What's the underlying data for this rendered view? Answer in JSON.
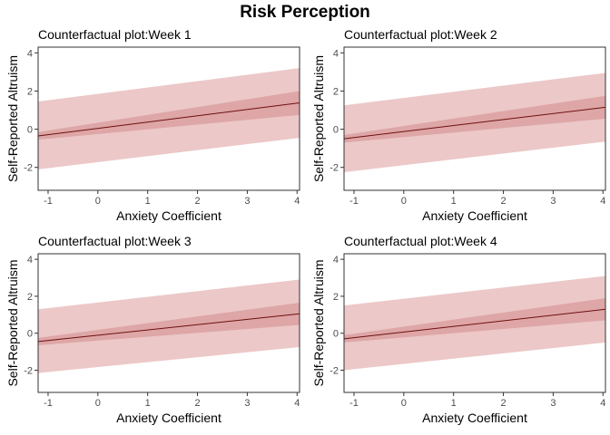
{
  "title": "Risk Perception",
  "colors": {
    "outer_band": "#ecc8c8",
    "inner_band": "#dea6a6",
    "line": "#6e0f0f",
    "axis_text": "#4d4d4d"
  },
  "chart_data": [
    {
      "type": "line",
      "title": "Counterfactual plot:Week 1",
      "xlabel": "Anxiety Coefficient",
      "ylabel": "Self-Reported Altruism",
      "xlim": [
        -1.2,
        4.05
      ],
      "ylim": [
        -3.2,
        4.3
      ],
      "xticks": [
        -1,
        0,
        1,
        2,
        3,
        4
      ],
      "yticks": [
        -2,
        0,
        2,
        4
      ],
      "grid": false,
      "legend": "none",
      "x": [
        -1.2,
        4.05
      ],
      "y": [
        -0.35,
        1.38
      ],
      "inner_lower": [
        -0.55,
        0.75
      ],
      "inner_upper": [
        -0.15,
        2.0
      ],
      "outer_lower": [
        -2.1,
        -0.45
      ],
      "outer_upper": [
        1.45,
        3.2
      ]
    },
    {
      "type": "line",
      "title": "Counterfactual plot:Week 2",
      "xlabel": "Anxiety Coefficient",
      "ylabel": "Self-Reported Altruism",
      "xlim": [
        -1.2,
        4.05
      ],
      "ylim": [
        -3.2,
        4.3
      ],
      "xticks": [
        -1,
        0,
        1,
        2,
        3,
        4
      ],
      "yticks": [
        -2,
        0,
        2,
        4
      ],
      "grid": false,
      "legend": "none",
      "x": [
        -1.2,
        4.05
      ],
      "y": [
        -0.5,
        1.15
      ],
      "inner_lower": [
        -0.7,
        0.55
      ],
      "inner_upper": [
        -0.3,
        1.75
      ],
      "outer_lower": [
        -2.25,
        -0.65
      ],
      "outer_upper": [
        1.25,
        2.95
      ]
    },
    {
      "type": "line",
      "title": "Counterfactual plot:Week 3",
      "xlabel": "Anxiety Coefficient",
      "ylabel": "Self-Reported Altruism",
      "xlim": [
        -1.2,
        4.05
      ],
      "ylim": [
        -3.2,
        4.3
      ],
      "xticks": [
        -1,
        0,
        1,
        2,
        3,
        4
      ],
      "yticks": [
        -2,
        0,
        2,
        4
      ],
      "grid": false,
      "legend": "none",
      "x": [
        -1.2,
        4.05
      ],
      "y": [
        -0.45,
        1.05
      ],
      "inner_lower": [
        -0.65,
        0.45
      ],
      "inner_upper": [
        -0.25,
        1.65
      ],
      "outer_lower": [
        -2.15,
        -0.75
      ],
      "outer_upper": [
        1.3,
        2.9
      ]
    },
    {
      "type": "line",
      "title": "Counterfactual plot:Week 4",
      "xlabel": "Anxiety Coefficient",
      "ylabel": "Self-Reported Altruism",
      "xlim": [
        -1.2,
        4.05
      ],
      "ylim": [
        -3.2,
        4.3
      ],
      "xticks": [
        -1,
        0,
        1,
        2,
        3,
        4
      ],
      "yticks": [
        -2,
        0,
        2,
        4
      ],
      "grid": false,
      "legend": "none",
      "x": [
        -1.2,
        4.05
      ],
      "y": [
        -0.3,
        1.3
      ],
      "inner_lower": [
        -0.5,
        0.7
      ],
      "inner_upper": [
        -0.1,
        1.9
      ],
      "outer_lower": [
        -2.0,
        -0.5
      ],
      "outer_upper": [
        1.5,
        3.1
      ]
    }
  ]
}
